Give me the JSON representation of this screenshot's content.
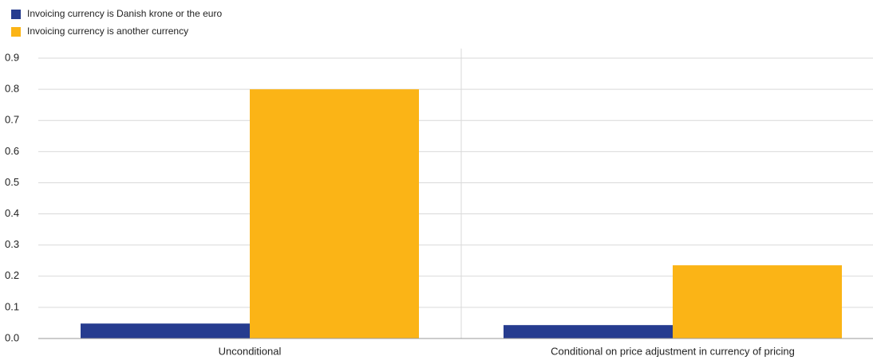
{
  "chart_data": {
    "type": "bar",
    "categories": [
      "Unconditional",
      "Conditional on price adjustment in currency of pricing"
    ],
    "series": [
      {
        "name": "Invoicing currency is Danish krone or the euro",
        "color": "#263c8f",
        "values": [
          0.048,
          0.043
        ]
      },
      {
        "name": "Invoicing currency is another currency",
        "color": "#fbb416",
        "values": [
          0.8,
          0.235
        ]
      }
    ],
    "ylim": [
      0,
      0.9
    ],
    "yticks": [
      {
        "value": 0,
        "label": "0.0"
      },
      0.1,
      0.2,
      0.3,
      0.4,
      0.5,
      0.6,
      0.7,
      0.8,
      0.9
    ],
    "grid": true,
    "legend": "top-left"
  }
}
